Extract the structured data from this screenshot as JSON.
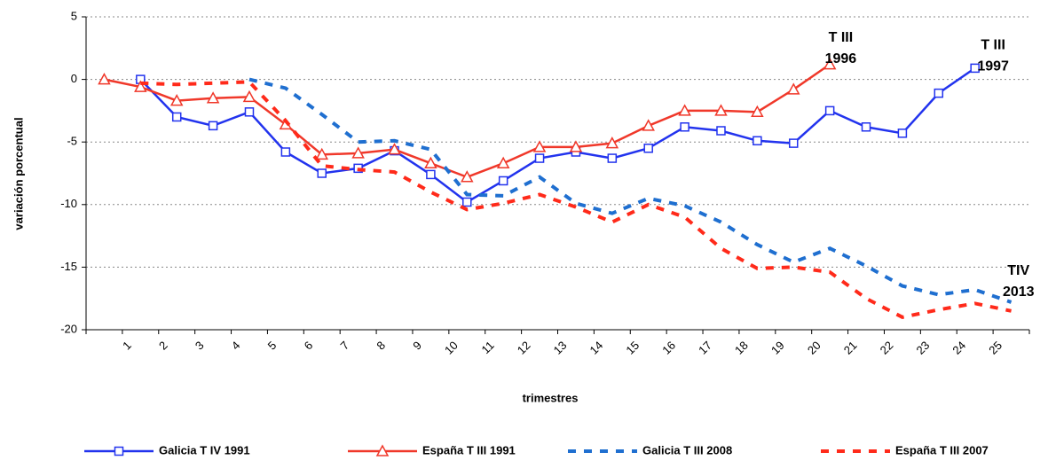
{
  "chart_data": {
    "type": "line",
    "ylabel": "variación porcentual",
    "xlabel": "trimestres",
    "categories": [
      null,
      "1",
      "2",
      "3",
      "4",
      "5",
      "6",
      "7",
      "8",
      "9",
      "10",
      "11",
      "12",
      "13",
      "14",
      "15",
      "16",
      "17",
      "18",
      "19",
      "20",
      "21",
      "22",
      "23",
      "24",
      "25"
    ],
    "ylim": [
      -20,
      5
    ],
    "yticks": [
      -20,
      -15,
      -10,
      -5,
      0,
      5
    ],
    "grid": true,
    "legend": "bottom",
    "series": [
      {
        "name": "Galicia T IV 1991",
        "color": "#2233ee",
        "marker": "square",
        "dashed": false,
        "values": [
          null,
          0,
          -3.0,
          -3.7,
          -2.6,
          -5.8,
          -7.5,
          -7.1,
          -5.7,
          -7.6,
          -9.8,
          -8.1,
          -6.3,
          -5.8,
          -6.3,
          -5.5,
          -3.8,
          -4.1,
          -4.9,
          -5.1,
          -2.5,
          -3.8,
          -4.3,
          -1.1,
          0.9,
          null
        ]
      },
      {
        "name": "España T III 1991",
        "color": "#f0382a",
        "marker": "triangle",
        "dashed": false,
        "values": [
          0,
          -0.6,
          -1.7,
          -1.5,
          -1.4,
          -3.6,
          -6.0,
          -5.9,
          -5.6,
          -6.7,
          -7.8,
          -6.7,
          -5.4,
          -5.4,
          -5.1,
          -3.7,
          -2.5,
          -2.5,
          -2.6,
          -0.8,
          1.2,
          null,
          null,
          null,
          null,
          null
        ]
      },
      {
        "name": "Galicia T III 2008",
        "color": "#1f6fd0",
        "marker": null,
        "dashed": true,
        "values": [
          null,
          null,
          null,
          null,
          0,
          -0.7,
          -2.8,
          -5.0,
          -4.9,
          -5.6,
          -9.2,
          -9.3,
          -7.8,
          -9.9,
          -10.7,
          -9.5,
          -10.1,
          -11.4,
          -13.2,
          -14.6,
          -13.5,
          -14.9,
          -16.5,
          -17.2,
          -16.8,
          -17.8
        ]
      },
      {
        "name": "España T III 2007",
        "color": "#ff2a1a",
        "marker": null,
        "dashed": true,
        "values": [
          null,
          -0.3,
          -0.4,
          -0.3,
          -0.2,
          -3.3,
          -6.9,
          -7.2,
          -7.4,
          -9.0,
          -10.4,
          -9.9,
          -9.2,
          -10.2,
          -11.4,
          -10.0,
          -11.0,
          -13.5,
          -15.1,
          -15.0,
          -15.4,
          -17.5,
          -19.0,
          -18.4,
          -17.9,
          -18.5
        ]
      }
    ],
    "annotations": [
      {
        "lines": [
          "T III",
          "1996"
        ],
        "x": 20.3,
        "y": 3.3
      },
      {
        "lines": [
          "T III",
          "1997"
        ],
        "x": 24.5,
        "y": 2.7
      },
      {
        "lines": [
          "TIV",
          "2013"
        ],
        "x": 25.2,
        "y": -15.3
      }
    ]
  }
}
